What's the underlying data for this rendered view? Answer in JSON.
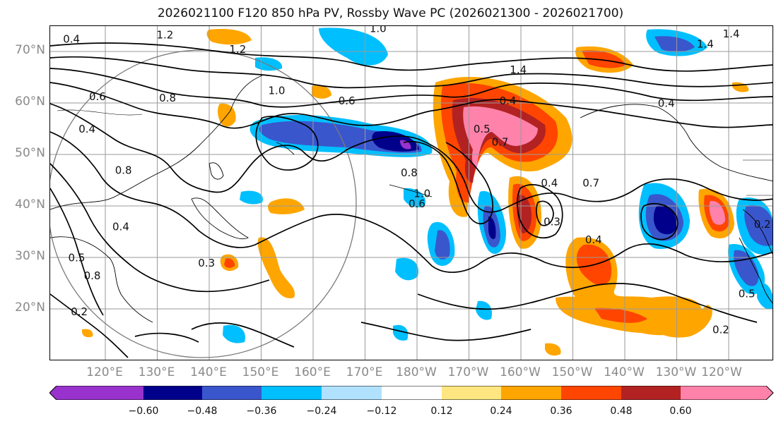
{
  "title": "2026021100 F120 850 hPa PV, Rossby Wave PC (2026021300 - 2026021700)",
  "latitude_labels": [
    "70°N",
    "60°N",
    "50°N",
    "40°N",
    "30°N",
    "20°N"
  ],
  "longitude_labels": [
    "120°E",
    "130°E",
    "140°E",
    "150°E",
    "160°E",
    "170°E",
    "180°W",
    "170°W",
    "160°W",
    "150°W",
    "140°W",
    "130°W",
    "120°W"
  ],
  "colorbar": {
    "ticks": [
      "−0.60",
      "−0.48",
      "−0.36",
      "−0.24",
      "−0.12",
      "0.12",
      "0.24",
      "0.36",
      "0.48",
      "0.60"
    ],
    "colors": [
      "#9932cc",
      "#00008b",
      "#3a56cc",
      "#00bfff",
      "#b0e2ff",
      "#ffffff",
      "#ffe680",
      "#ffa500",
      "#ff4500",
      "#b22222",
      "#ff82ab"
    ],
    "extend": "both"
  },
  "contour_labels": [
    {
      "text": "1.2",
      "lon": 131.5,
      "lat": 73.3
    },
    {
      "text": "1.2",
      "lon": 145.5,
      "lat": 70.5
    },
    {
      "text": "1.0",
      "lon": 172.5,
      "lat": 74.5
    },
    {
      "text": "1.4",
      "lon": 199.5,
      "lat": 66.5
    },
    {
      "text": "1.4",
      "lon": 235.5,
      "lat": 71.5
    },
    {
      "text": "1.4",
      "lon": 240.5,
      "lat": 73.5
    },
    {
      "text": "1.0",
      "lon": 153.0,
      "lat": 62.5
    },
    {
      "text": "0.6",
      "lon": 166.5,
      "lat": 60.5
    },
    {
      "text": "0.8",
      "lon": 132.0,
      "lat": 61.0
    },
    {
      "text": "0.6",
      "lon": 118.5,
      "lat": 61.3
    },
    {
      "text": "0.4",
      "lon": 116.5,
      "lat": 55.0
    },
    {
      "text": "0.4",
      "lon": 197.5,
      "lat": 60.5
    },
    {
      "text": "0.5",
      "lon": 192.5,
      "lat": 55.0
    },
    {
      "text": "0.7",
      "lon": 196.0,
      "lat": 52.5
    },
    {
      "text": "0.4",
      "lon": 228.0,
      "lat": 60.0
    },
    {
      "text": "1.0",
      "lon": 181.0,
      "lat": 42.5
    },
    {
      "text": "0.8",
      "lon": 178.5,
      "lat": 46.5
    },
    {
      "text": "0.6",
      "lon": 180.0,
      "lat": 40.5
    },
    {
      "text": "0.4",
      "lon": 205.5,
      "lat": 44.5
    },
    {
      "text": "0.3",
      "lon": 206.0,
      "lat": 37.0
    },
    {
      "text": "0.7",
      "lon": 213.5,
      "lat": 44.5
    },
    {
      "text": "0.4",
      "lon": 214.0,
      "lat": 33.5
    },
    {
      "text": "0.3",
      "lon": 139.5,
      "lat": 29.0
    },
    {
      "text": "0.2",
      "lon": 115.0,
      "lat": 19.5
    },
    {
      "text": "0.2",
      "lon": 238.5,
      "lat": 16.0
    },
    {
      "text": "0.2",
      "lon": 246.5,
      "lat": 36.5
    },
    {
      "text": "0.8",
      "lon": 117.5,
      "lat": 26.5
    },
    {
      "text": "0.8",
      "lon": 123.5,
      "lat": 47.0
    },
    {
      "text": "0.4",
      "lon": 123.0,
      "lat": 36.0
    },
    {
      "text": "0.5",
      "lon": 114.5,
      "lat": 30.0
    },
    {
      "text": "0.5",
      "lon": 243.5,
      "lat": 23.0
    },
    {
      "text": "0.4",
      "lon": 113.5,
      "lat": 72.5
    }
  ],
  "colors": {
    "contour": "#000000",
    "grid": "#9a9a9a",
    "circle": "#7a7a7a",
    "axis_label": "#8a8a8a"
  }
}
